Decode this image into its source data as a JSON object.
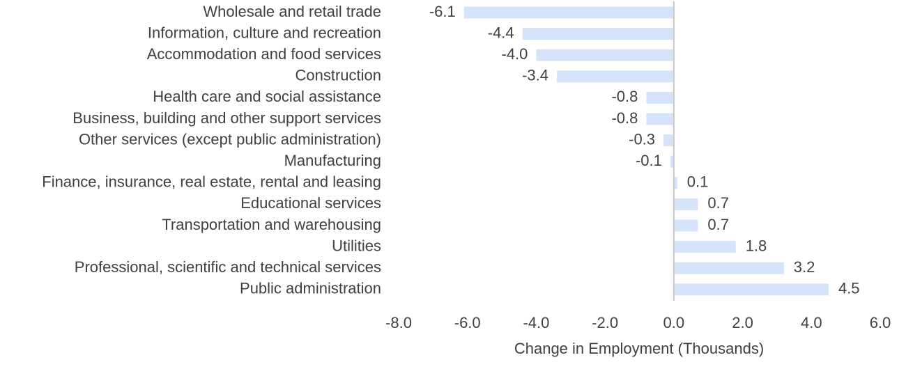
{
  "chart_data": {
    "type": "bar",
    "orientation": "horizontal",
    "title": "",
    "xlabel": "Change in Employment (Thousands)",
    "ylabel": "",
    "categories": [
      "Wholesale and retail trade",
      "Information, culture and recreation",
      "Accommodation and food services",
      "Construction",
      "Health care and social assistance",
      "Business, building and other support services",
      "Other services (except public administration)",
      "Manufacturing",
      "Finance, insurance, real estate, rental and leasing",
      "Educational services",
      "Transportation and warehousing",
      "Utilities",
      "Professional, scientific and technical services",
      "Public administration"
    ],
    "values": [
      -6.1,
      -4.4,
      -4.0,
      -3.4,
      -0.8,
      -0.8,
      -0.3,
      -0.1,
      0.1,
      0.7,
      0.7,
      1.8,
      3.2,
      4.5
    ],
    "data_labels": [
      "-6.1",
      "-4.4",
      "-4.0",
      "-3.4",
      "-0.8",
      "-0.8",
      "-0.3",
      "-0.1",
      "0.1",
      "0.7",
      "0.7",
      "1.8",
      "3.2",
      "4.5"
    ],
    "xlim": [
      -8.0,
      6.0
    ],
    "x_ticks": [
      -8.0,
      -6.0,
      -4.0,
      -2.0,
      0.0,
      2.0,
      4.0,
      6.0
    ],
    "x_tick_labels": [
      "-8.0",
      "-6.0",
      "-4.0",
      "-2.0",
      "0.0",
      "2.0",
      "4.0",
      "6.0"
    ],
    "grid": false,
    "legend": "none",
    "bar_color": "#d6e4fb",
    "zero_line_color": "#c8c8c8",
    "text_color": "#404040"
  }
}
